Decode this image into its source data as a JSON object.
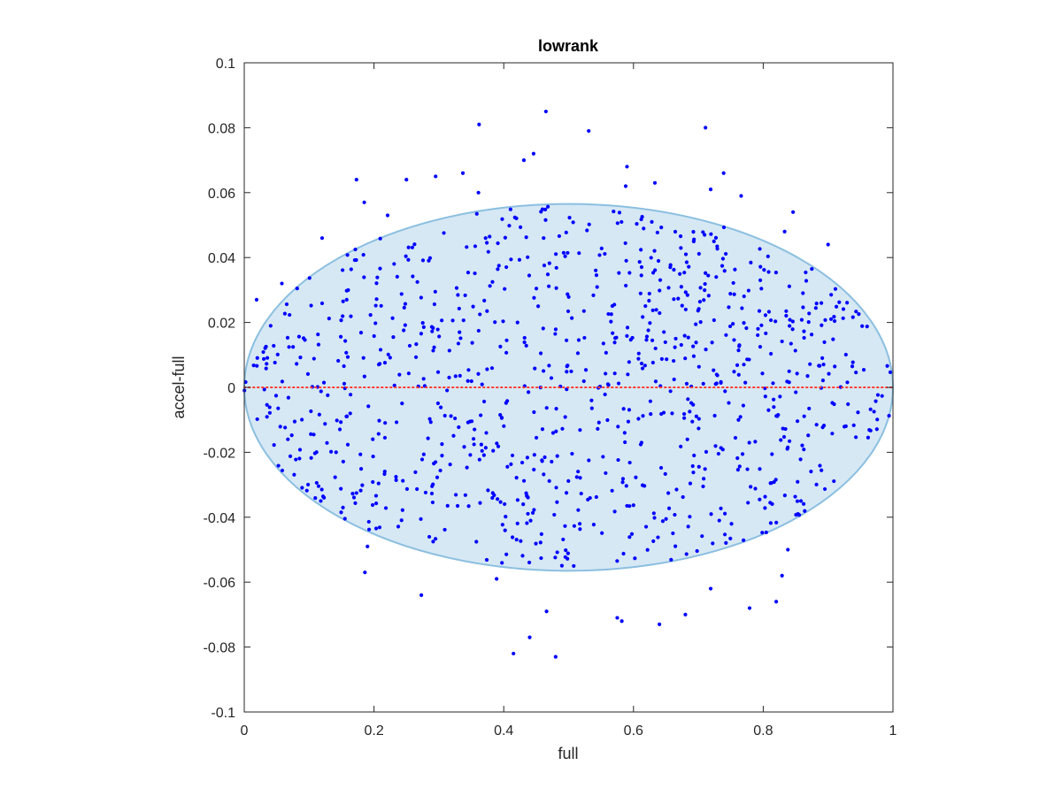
{
  "chart_data": {
    "type": "scatter",
    "title": "lowrank",
    "xlabel": "full",
    "ylabel": "accel-full",
    "xlim": [
      0,
      1
    ],
    "ylim": [
      -0.1,
      0.1
    ],
    "xticks": [
      0,
      0.2,
      0.4,
      0.6,
      0.8,
      1
    ],
    "xtick_labels": [
      "0",
      "0.2",
      "0.4",
      "0.6",
      "0.8",
      "1"
    ],
    "yticks": [
      -0.1,
      -0.08,
      -0.06,
      -0.04,
      -0.02,
      0,
      0.02,
      0.04,
      0.06,
      0.08,
      0.1
    ],
    "ytick_labels": [
      "-0.1",
      "-0.08",
      "-0.06",
      "-0.04",
      "-0.02",
      "0",
      "0.02",
      "0.04",
      "0.06",
      "0.08",
      "0.1"
    ],
    "grid": false,
    "ellipse": {
      "center": [
        0.5,
        0.0
      ],
      "radii": [
        0.5,
        0.0565
      ],
      "fill_color": "#d6e8f4",
      "edge_color": "#8bbfe0"
    },
    "reference_line": {
      "y": 0,
      "color": "#ff3b2f",
      "style": "dotted"
    },
    "marker_color": "#0000ff",
    "series": [
      {
        "values": [
          [
            0.465,
            0.085
          ],
          [
            0.362,
            0.081
          ],
          [
            0.711,
            0.08
          ],
          [
            0.531,
            0.079
          ],
          [
            0.446,
            0.072
          ],
          [
            0.431,
            0.07
          ],
          [
            0.59,
            0.068
          ],
          [
            0.337,
            0.066
          ],
          [
            0.295,
            0.065
          ],
          [
            0.173,
            0.064
          ],
          [
            0.25,
            0.064
          ],
          [
            0.633,
            0.063
          ],
          [
            0.739,
            0.066
          ],
          [
            0.719,
            0.061
          ],
          [
            0.361,
            0.06
          ],
          [
            0.588,
            0.062
          ],
          [
            0.766,
            0.059
          ],
          [
            0.185,
            0.057
          ],
          [
            0.221,
            0.053
          ],
          [
            0.846,
            0.054
          ],
          [
            0.12,
            0.046
          ],
          [
            0.833,
            0.048
          ],
          [
            0.9,
            0.044
          ],
          [
            0.058,
            0.032
          ],
          [
            0.019,
            0.027
          ],
          [
            0.415,
            -0.082
          ],
          [
            0.48,
            -0.083
          ],
          [
            0.44,
            -0.077
          ],
          [
            0.575,
            -0.071
          ],
          [
            0.582,
            -0.072
          ],
          [
            0.64,
            -0.073
          ],
          [
            0.466,
            -0.069
          ],
          [
            0.68,
            -0.07
          ],
          [
            0.273,
            -0.064
          ],
          [
            0.389,
            -0.059
          ],
          [
            0.719,
            -0.062
          ],
          [
            0.779,
            -0.068
          ],
          [
            0.82,
            -0.066
          ],
          [
            0.186,
            -0.057
          ],
          [
            0.19,
            -0.049
          ],
          [
            0.118,
            -0.035
          ],
          [
            0.123,
            -0.034
          ],
          [
            0.829,
            -0.058
          ],
          [
            0.838,
            -0.05
          ]
        ]
      }
    ]
  }
}
